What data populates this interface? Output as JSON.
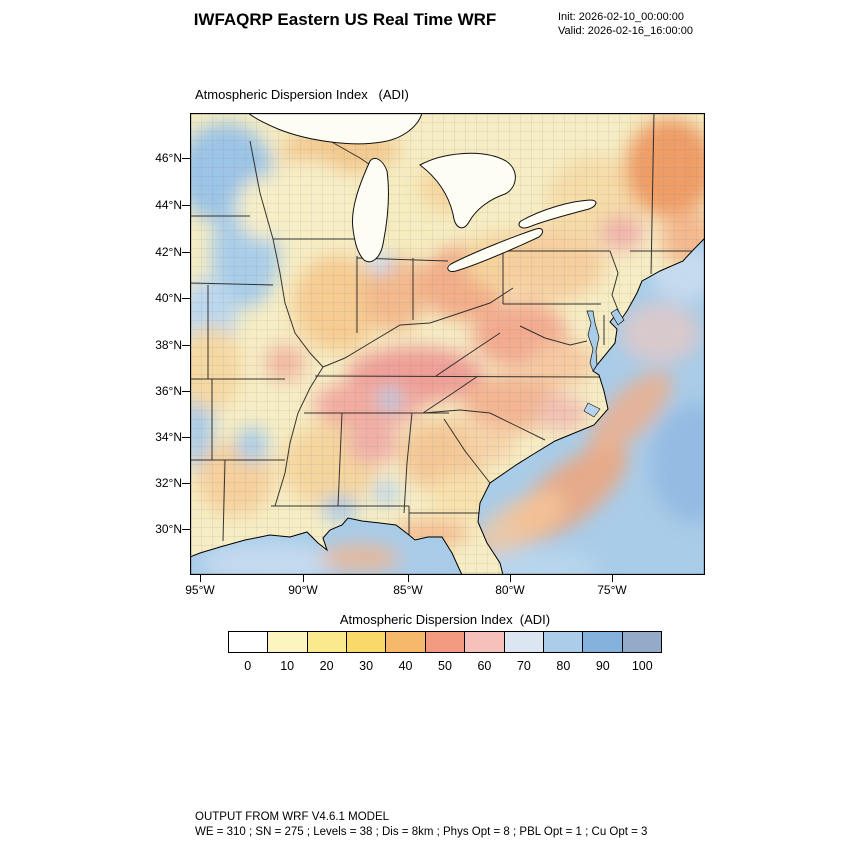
{
  "header": {
    "title": "IWFAQRP Eastern US Real Time WRF",
    "init_line": "Init: 2026-02-10_00:00:00",
    "valid_line": "Valid: 2026-02-16_16:00:00"
  },
  "map": {
    "title": "Atmospheric Dispersion Index   (ADI)",
    "lat_labels": [
      "46°N",
      "44°N",
      "42°N",
      "40°N",
      "38°N",
      "36°N",
      "34°N",
      "32°N",
      "30°N"
    ],
    "lon_labels": [
      "95°W",
      "90°W",
      "85°W",
      "80°W",
      "75°W"
    ]
  },
  "colorbar": {
    "title": "Atmospheric Dispersion Index  (ADI)",
    "tick_labels": [
      "0",
      "10",
      "20",
      "30",
      "40",
      "50",
      "60",
      "70",
      "80",
      "90",
      "100"
    ],
    "colors": [
      "#ffffff",
      "#fcf5c0",
      "#fae98d",
      "#f8d96a",
      "#f6b969",
      "#f29a80",
      "#f5c1ba",
      "#dbe6f2",
      "#abcde9",
      "#84b2dd",
      "#94aac9"
    ]
  },
  "footer": {
    "line1": "OUTPUT FROM WRF V4.6.1 MODEL",
    "line2": "WE = 310 ; SN = 275 ; Levels = 38 ; Dis = 8km ; Phys Opt = 8 ; PBL Opt = 1 ; Cu Opt = 3"
  }
}
